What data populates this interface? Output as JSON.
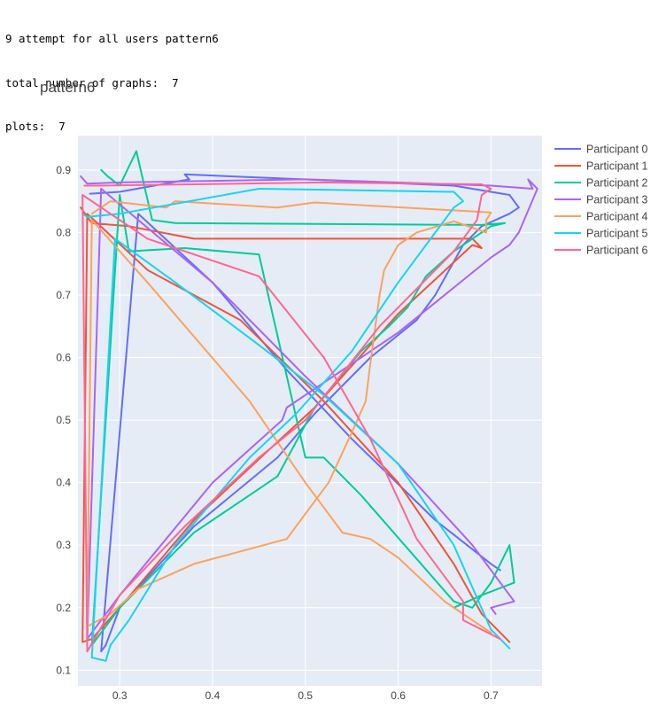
{
  "console": {
    "line1": "9 attempt for all users pattern6",
    "line2": "total number of graphs:  7",
    "line3": "plots:  7"
  },
  "chart_data": {
    "type": "line",
    "title": "pattern6",
    "xlim": [
      0.255,
      0.755
    ],
    "ylim": [
      0.075,
      0.955
    ],
    "xticks": [
      0.3,
      0.4,
      0.5,
      0.6,
      0.7
    ],
    "yticks": [
      0.1,
      0.2,
      0.3,
      0.4,
      0.5,
      0.6,
      0.7,
      0.8,
      0.9
    ],
    "grid": true,
    "legend_position": "right",
    "series": [
      {
        "name": "Participant 0",
        "color": "#636efa",
        "points": [
          [
            0.268,
            0.862
          ],
          [
            0.3,
            0.865
          ],
          [
            0.375,
            0.885
          ],
          [
            0.37,
            0.893
          ],
          [
            0.66,
            0.875
          ],
          [
            0.72,
            0.86
          ],
          [
            0.73,
            0.84
          ],
          [
            0.72,
            0.83
          ],
          [
            0.69,
            0.81
          ],
          [
            0.67,
            0.78
          ],
          [
            0.64,
            0.7
          ],
          [
            0.62,
            0.66
          ],
          [
            0.57,
            0.6
          ],
          [
            0.51,
            0.51
          ],
          [
            0.47,
            0.44
          ],
          [
            0.38,
            0.33
          ],
          [
            0.3,
            0.2
          ],
          [
            0.285,
            0.14
          ],
          [
            0.28,
            0.13
          ],
          [
            0.32,
            0.83
          ],
          [
            0.4,
            0.72
          ],
          [
            0.48,
            0.58
          ],
          [
            0.55,
            0.47
          ],
          [
            0.64,
            0.34
          ],
          [
            0.7,
            0.27
          ],
          [
            0.71,
            0.26
          ]
        ]
      },
      {
        "name": "Participant 1",
        "color": "#ef553b",
        "points": [
          [
            0.258,
            0.84
          ],
          [
            0.27,
            0.815
          ],
          [
            0.31,
            0.81
          ],
          [
            0.38,
            0.79
          ],
          [
            0.55,
            0.79
          ],
          [
            0.68,
            0.79
          ],
          [
            0.69,
            0.775
          ],
          [
            0.68,
            0.78
          ],
          [
            0.6,
            0.67
          ],
          [
            0.51,
            0.52
          ],
          [
            0.43,
            0.41
          ],
          [
            0.38,
            0.34
          ],
          [
            0.3,
            0.2
          ],
          [
            0.27,
            0.15
          ],
          [
            0.26,
            0.145
          ],
          [
            0.265,
            0.83
          ],
          [
            0.33,
            0.74
          ],
          [
            0.43,
            0.66
          ],
          [
            0.52,
            0.53
          ],
          [
            0.6,
            0.4
          ],
          [
            0.66,
            0.27
          ],
          [
            0.69,
            0.19
          ],
          [
            0.72,
            0.145
          ]
        ]
      },
      {
        "name": "Participant 2",
        "color": "#00cc96",
        "points": [
          [
            0.28,
            0.9
          ],
          [
            0.287,
            0.89
          ],
          [
            0.3,
            0.875
          ],
          [
            0.318,
            0.93
          ],
          [
            0.335,
            0.82
          ],
          [
            0.36,
            0.815
          ],
          [
            0.69,
            0.812
          ],
          [
            0.715,
            0.815
          ],
          [
            0.7,
            0.81
          ],
          [
            0.66,
            0.77
          ],
          [
            0.63,
            0.73
          ],
          [
            0.61,
            0.68
          ],
          [
            0.59,
            0.65
          ],
          [
            0.56,
            0.61
          ],
          [
            0.51,
            0.52
          ],
          [
            0.47,
            0.41
          ],
          [
            0.45,
            0.39
          ],
          [
            0.38,
            0.32
          ],
          [
            0.3,
            0.2
          ],
          [
            0.27,
            0.14
          ],
          [
            0.3,
            0.86
          ],
          [
            0.31,
            0.77
          ],
          [
            0.37,
            0.775
          ],
          [
            0.45,
            0.765
          ],
          [
            0.46,
            0.7
          ],
          [
            0.5,
            0.44
          ],
          [
            0.52,
            0.44
          ],
          [
            0.56,
            0.38
          ],
          [
            0.66,
            0.21
          ],
          [
            0.68,
            0.2
          ],
          [
            0.7,
            0.24
          ],
          [
            0.72,
            0.3
          ],
          [
            0.725,
            0.24
          ],
          [
            0.69,
            0.22
          ],
          [
            0.66,
            0.2
          ]
        ]
      },
      {
        "name": "Participant 3",
        "color": "#ab63fa",
        "points": [
          [
            0.258,
            0.89
          ],
          [
            0.265,
            0.878
          ],
          [
            0.3,
            0.88
          ],
          [
            0.5,
            0.885
          ],
          [
            0.7,
            0.875
          ],
          [
            0.745,
            0.87
          ],
          [
            0.74,
            0.885
          ],
          [
            0.75,
            0.87
          ],
          [
            0.73,
            0.8
          ],
          [
            0.72,
            0.78
          ],
          [
            0.7,
            0.76
          ],
          [
            0.6,
            0.64
          ],
          [
            0.48,
            0.52
          ],
          [
            0.475,
            0.5
          ],
          [
            0.4,
            0.4
          ],
          [
            0.3,
            0.22
          ],
          [
            0.27,
            0.16
          ],
          [
            0.265,
            0.15
          ],
          [
            0.28,
            0.87
          ],
          [
            0.4,
            0.72
          ],
          [
            0.5,
            0.57
          ],
          [
            0.6,
            0.43
          ],
          [
            0.68,
            0.3
          ],
          [
            0.725,
            0.21
          ],
          [
            0.7,
            0.2
          ],
          [
            0.705,
            0.19
          ]
        ]
      },
      {
        "name": "Participant 4",
        "color": "#ffa15a",
        "points": [
          [
            0.27,
            0.83
          ],
          [
            0.29,
            0.85
          ],
          [
            0.35,
            0.84
          ],
          [
            0.36,
            0.85
          ],
          [
            0.47,
            0.84
          ],
          [
            0.51,
            0.848
          ],
          [
            0.7,
            0.832
          ],
          [
            0.695,
            0.82
          ],
          [
            0.695,
            0.8
          ],
          [
            0.66,
            0.818
          ],
          [
            0.62,
            0.8
          ],
          [
            0.6,
            0.78
          ],
          [
            0.585,
            0.74
          ],
          [
            0.58,
            0.7
          ],
          [
            0.57,
            0.59
          ],
          [
            0.565,
            0.53
          ],
          [
            0.55,
            0.48
          ],
          [
            0.525,
            0.4
          ],
          [
            0.505,
            0.36
          ],
          [
            0.48,
            0.31
          ],
          [
            0.38,
            0.27
          ],
          [
            0.32,
            0.23
          ],
          [
            0.29,
            0.19
          ],
          [
            0.265,
            0.17
          ],
          [
            0.27,
            0.82
          ],
          [
            0.33,
            0.72
          ],
          [
            0.44,
            0.53
          ],
          [
            0.5,
            0.4
          ],
          [
            0.54,
            0.32
          ],
          [
            0.57,
            0.31
          ],
          [
            0.6,
            0.28
          ],
          [
            0.65,
            0.21
          ],
          [
            0.68,
            0.18
          ],
          [
            0.7,
            0.16
          ]
        ]
      },
      {
        "name": "Participant 5",
        "color": "#19d3f3",
        "points": [
          [
            0.26,
            0.83
          ],
          [
            0.265,
            0.825
          ],
          [
            0.3,
            0.83
          ],
          [
            0.45,
            0.87
          ],
          [
            0.66,
            0.865
          ],
          [
            0.67,
            0.85
          ],
          [
            0.66,
            0.84
          ],
          [
            0.64,
            0.8
          ],
          [
            0.6,
            0.72
          ],
          [
            0.55,
            0.61
          ],
          [
            0.49,
            0.51
          ],
          [
            0.44,
            0.44
          ],
          [
            0.36,
            0.3
          ],
          [
            0.31,
            0.18
          ],
          [
            0.29,
            0.14
          ],
          [
            0.285,
            0.115
          ],
          [
            0.27,
            0.12
          ],
          [
            0.295,
            0.79
          ],
          [
            0.36,
            0.72
          ],
          [
            0.45,
            0.62
          ],
          [
            0.52,
            0.54
          ],
          [
            0.6,
            0.43
          ],
          [
            0.66,
            0.3
          ],
          [
            0.7,
            0.165
          ],
          [
            0.72,
            0.135
          ]
        ]
      },
      {
        "name": "Participant 6",
        "color": "#ff6692",
        "points": [
          [
            0.262,
            0.875
          ],
          [
            0.275,
            0.875
          ],
          [
            0.52,
            0.88
          ],
          [
            0.69,
            0.877
          ],
          [
            0.7,
            0.87
          ],
          [
            0.69,
            0.86
          ],
          [
            0.685,
            0.82
          ],
          [
            0.66,
            0.77
          ],
          [
            0.58,
            0.65
          ],
          [
            0.5,
            0.5
          ],
          [
            0.45,
            0.44
          ],
          [
            0.37,
            0.33
          ],
          [
            0.3,
            0.22
          ],
          [
            0.265,
            0.13
          ],
          [
            0.26,
            0.86
          ],
          [
            0.33,
            0.79
          ],
          [
            0.45,
            0.73
          ],
          [
            0.52,
            0.6
          ],
          [
            0.57,
            0.47
          ],
          [
            0.62,
            0.31
          ],
          [
            0.67,
            0.21
          ],
          [
            0.67,
            0.18
          ],
          [
            0.71,
            0.15
          ]
        ]
      }
    ]
  }
}
